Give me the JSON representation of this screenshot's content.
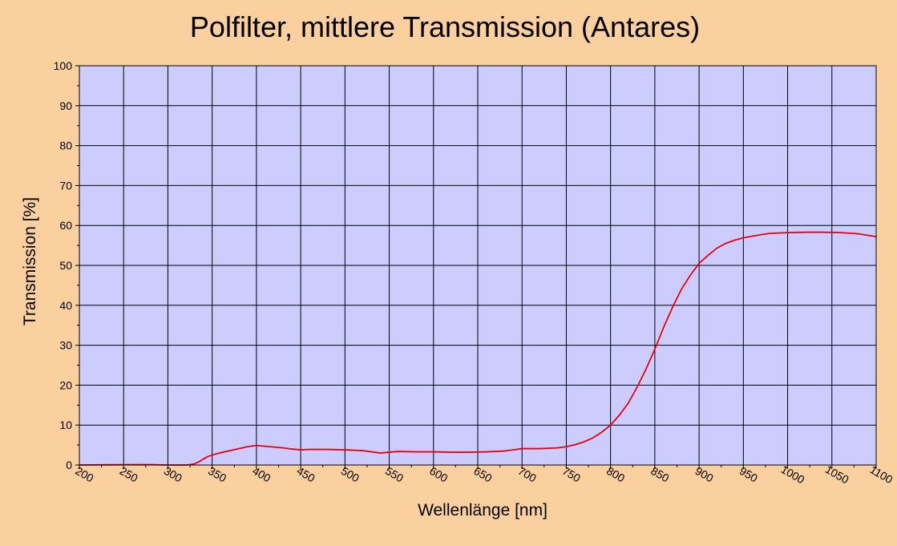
{
  "colors": {
    "background": "#FBD09F",
    "plot_area": "#CCCCFF",
    "grid": "#000000",
    "series": "#E8000B"
  },
  "chart_data": {
    "type": "line",
    "title": "Polfilter, mittlere Transmission (Antares)",
    "xlabel": "Wellenlänge [nm]",
    "ylabel": "Transmission [%]",
    "xlim": [
      200,
      1100
    ],
    "ylim": [
      0,
      100
    ],
    "x_ticks": [
      200,
      250,
      300,
      350,
      400,
      450,
      500,
      550,
      600,
      650,
      700,
      750,
      800,
      850,
      900,
      950,
      1000,
      1050,
      1100
    ],
    "y_ticks": [
      0,
      10,
      20,
      30,
      40,
      50,
      60,
      70,
      80,
      90,
      100
    ],
    "grid": true,
    "legend": "none",
    "series": [
      {
        "x": [
          200,
          260,
          280,
          300,
          320,
          325,
          330,
          335,
          340,
          345,
          350,
          360,
          370,
          380,
          390,
          400,
          410,
          420,
          430,
          440,
          450,
          460,
          480,
          500,
          520,
          540,
          560,
          580,
          600,
          620,
          640,
          660,
          680,
          690,
          700,
          720,
          740,
          750,
          760,
          770,
          780,
          790,
          800,
          810,
          820,
          830,
          840,
          850,
          860,
          870,
          880,
          890,
          900,
          910,
          920,
          930,
          940,
          950,
          960,
          970,
          980,
          990,
          1000,
          1020,
          1040,
          1060,
          1080,
          1100
        ],
        "y": [
          0,
          0.1,
          0.1,
          0,
          0,
          0.1,
          0.3,
          0.8,
          1.5,
          2.1,
          2.5,
          3.1,
          3.6,
          4.1,
          4.6,
          4.9,
          4.7,
          4.5,
          4.3,
          4.0,
          3.8,
          3.9,
          3.9,
          3.8,
          3.6,
          3.0,
          3.4,
          3.3,
          3.3,
          3.2,
          3.2,
          3.3,
          3.5,
          3.8,
          4.1,
          4.1,
          4.3,
          4.6,
          5.1,
          5.8,
          6.8,
          8.2,
          10.0,
          12.5,
          15.5,
          19.5,
          24.0,
          29.0,
          34.5,
          39.5,
          44.0,
          47.5,
          50.5,
          52.5,
          54.3,
          55.5,
          56.3,
          56.9,
          57.3,
          57.7,
          58.0,
          58.1,
          58.2,
          58.3,
          58.3,
          58.2,
          57.9,
          57.2
        ]
      }
    ]
  }
}
